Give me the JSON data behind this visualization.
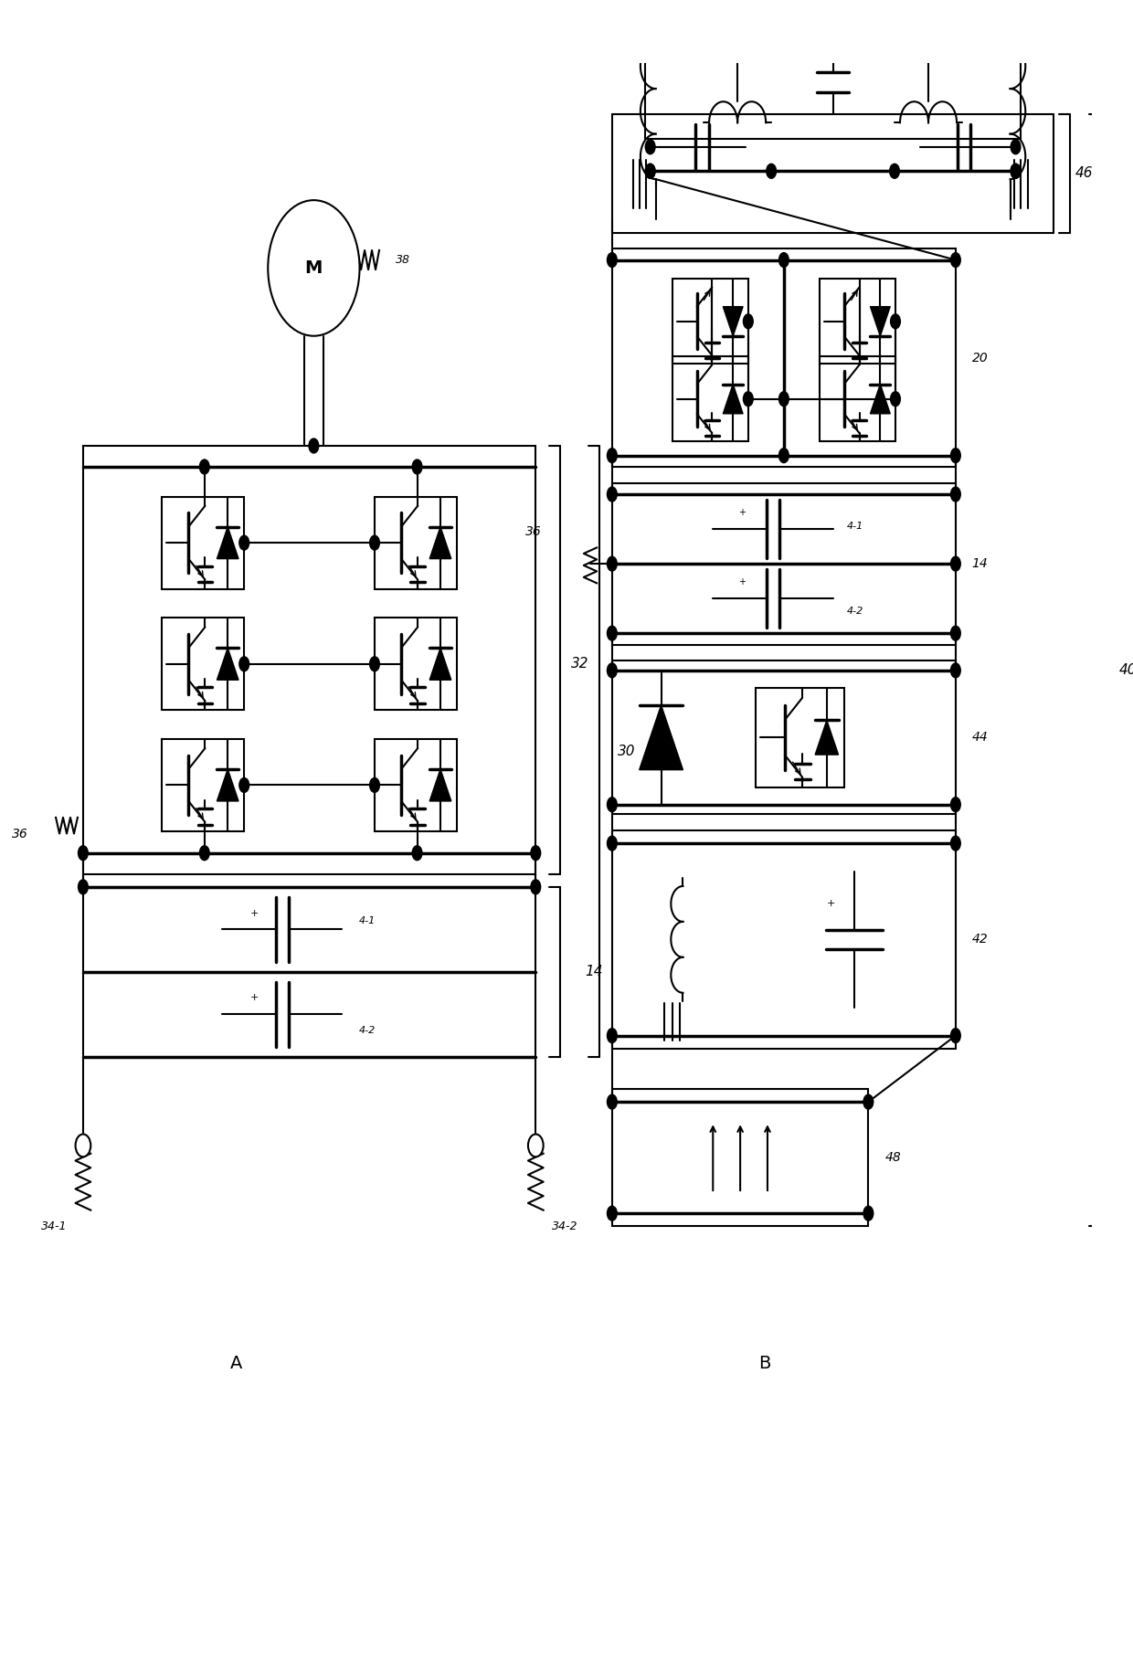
{
  "bg": "#ffffff",
  "lc": "#000000",
  "lw": 1.5,
  "lw2": 2.5,
  "fig_w": 12.4,
  "fig_h": 18.39,
  "label_A": "A",
  "label_B": "B"
}
